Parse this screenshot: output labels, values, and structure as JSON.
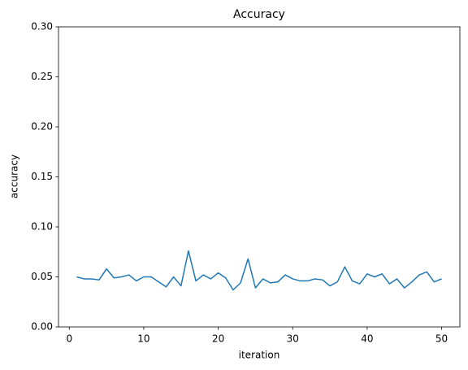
{
  "chart_data": {
    "type": "line",
    "title": "Accuracy",
    "x_label": "iteration",
    "y_label": "accuracy",
    "x": [
      1,
      2,
      3,
      4,
      5,
      6,
      7,
      8,
      9,
      10,
      11,
      12,
      13,
      14,
      15,
      16,
      17,
      18,
      19,
      20,
      21,
      22,
      23,
      24,
      25,
      26,
      27,
      28,
      29,
      30,
      31,
      32,
      33,
      34,
      35,
      36,
      37,
      38,
      39,
      40,
      41,
      42,
      43,
      44,
      45,
      46,
      47,
      48,
      49,
      50
    ],
    "series": [
      {
        "name": "accuracy",
        "color": "#1f77b4",
        "values": [
          0.05,
          0.048,
          0.048,
          0.047,
          0.058,
          0.049,
          0.05,
          0.052,
          0.046,
          0.05,
          0.05,
          0.045,
          0.04,
          0.05,
          0.041,
          0.076,
          0.046,
          0.052,
          0.048,
          0.054,
          0.049,
          0.037,
          0.044,
          0.068,
          0.039,
          0.048,
          0.044,
          0.045,
          0.052,
          0.048,
          0.046,
          0.046,
          0.048,
          0.047,
          0.041,
          0.045,
          0.06,
          0.046,
          0.043,
          0.053,
          0.05,
          0.053,
          0.043,
          0.048,
          0.039,
          0.045,
          0.052,
          0.055,
          0.045,
          0.048
        ]
      }
    ],
    "xlim": [
      -1.45,
      52.45
    ],
    "xticks": [
      0,
      10,
      20,
      30,
      40,
      50
    ],
    "ylim": [
      0,
      0.3
    ],
    "yticks": [
      {
        "value": 0,
        "label": "0.00"
      },
      {
        "value": 0.05,
        "label": "0.05"
      },
      {
        "value": 0.1,
        "label": "0.10"
      },
      {
        "value": 0.15,
        "label": "0.15"
      },
      {
        "value": 0.2,
        "label": "0.20"
      },
      {
        "value": 0.25,
        "label": "0.25"
      },
      {
        "value": 0.3,
        "label": "0.30"
      }
    ],
    "grid": false
  }
}
